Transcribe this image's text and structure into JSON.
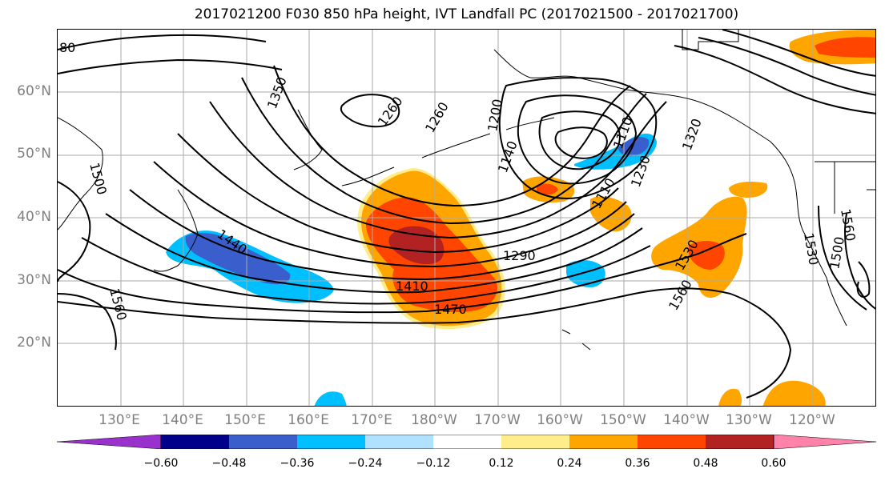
{
  "title": "2017021200 F030 850 hPa height, IVT Landfall PC (2017021500 - 2017021700)",
  "map": {
    "lat_labels": [
      "60°N",
      "50°N",
      "40°N",
      "30°N",
      "20°N"
    ],
    "lon_labels": [
      "130°E",
      "140°E",
      "150°E",
      "160°E",
      "170°E",
      "180°W",
      "170°W",
      "160°W",
      "150°W",
      "140°W",
      "130°W",
      "120°W"
    ],
    "contour_labels": [
      "1350",
      "1260",
      "1260",
      "1200",
      "1140",
      "1110",
      "1230",
      "1320",
      "1500",
      "1440",
      "1290",
      "1410",
      "1470",
      "1560",
      "1530",
      "1560",
      "1530",
      "1500",
      "1110",
      "1560",
      "80"
    ]
  },
  "colorbar": {
    "ticks": [
      "−0.60",
      "−0.48",
      "−0.36",
      "−0.24",
      "−0.12",
      "0.12",
      "0.24",
      "0.36",
      "0.48",
      "0.60"
    ],
    "colors": [
      "#9932cc",
      "#00008b",
      "#3a5fcd",
      "#00bfff",
      "#b0e2ff",
      "#ffffff",
      "#ffec8b",
      "#ffa500",
      "#ff4500",
      "#b22222",
      "#ff82ab"
    ]
  },
  "fill_colors": {
    "light_orange": "#ffa500",
    "red_orange": "#ff4500",
    "dark_red": "#b22222",
    "yellow": "#ffec8b",
    "sky_blue": "#00bfff",
    "royal_blue": "#3a5fcd"
  }
}
